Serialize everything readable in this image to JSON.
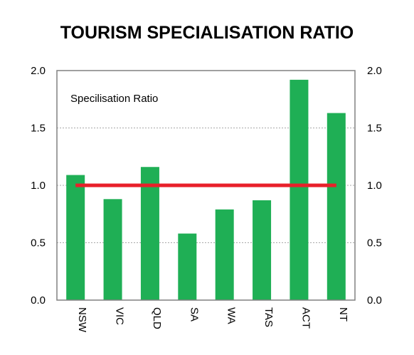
{
  "chart_data": {
    "type": "bar",
    "title": "TOURISM SPECIALISATION RATIO",
    "annotation": "Specilisation Ratio",
    "categories": [
      "NSW",
      "VIC",
      "QLD",
      "SA",
      "WA",
      "TAS",
      "ACT",
      "NT"
    ],
    "series": [
      {
        "values": [
          1.09,
          0.88,
          1.16,
          0.58,
          0.79,
          0.87,
          1.92,
          1.63
        ]
      }
    ],
    "reference_line": {
      "value": 1.0,
      "color": "#e8202a"
    },
    "bar_color": "#1faf55",
    "ylim": [
      0,
      2
    ],
    "yticks": [
      "0.0",
      "0.5",
      "1.0",
      "1.5",
      "2.0"
    ],
    "ytick_values": [
      0,
      0.5,
      1.0,
      1.5,
      2.0
    ],
    "y_axis_mirrored_right": true,
    "grid": "horizontal-dotted",
    "xlabel": "",
    "ylabel": ""
  }
}
